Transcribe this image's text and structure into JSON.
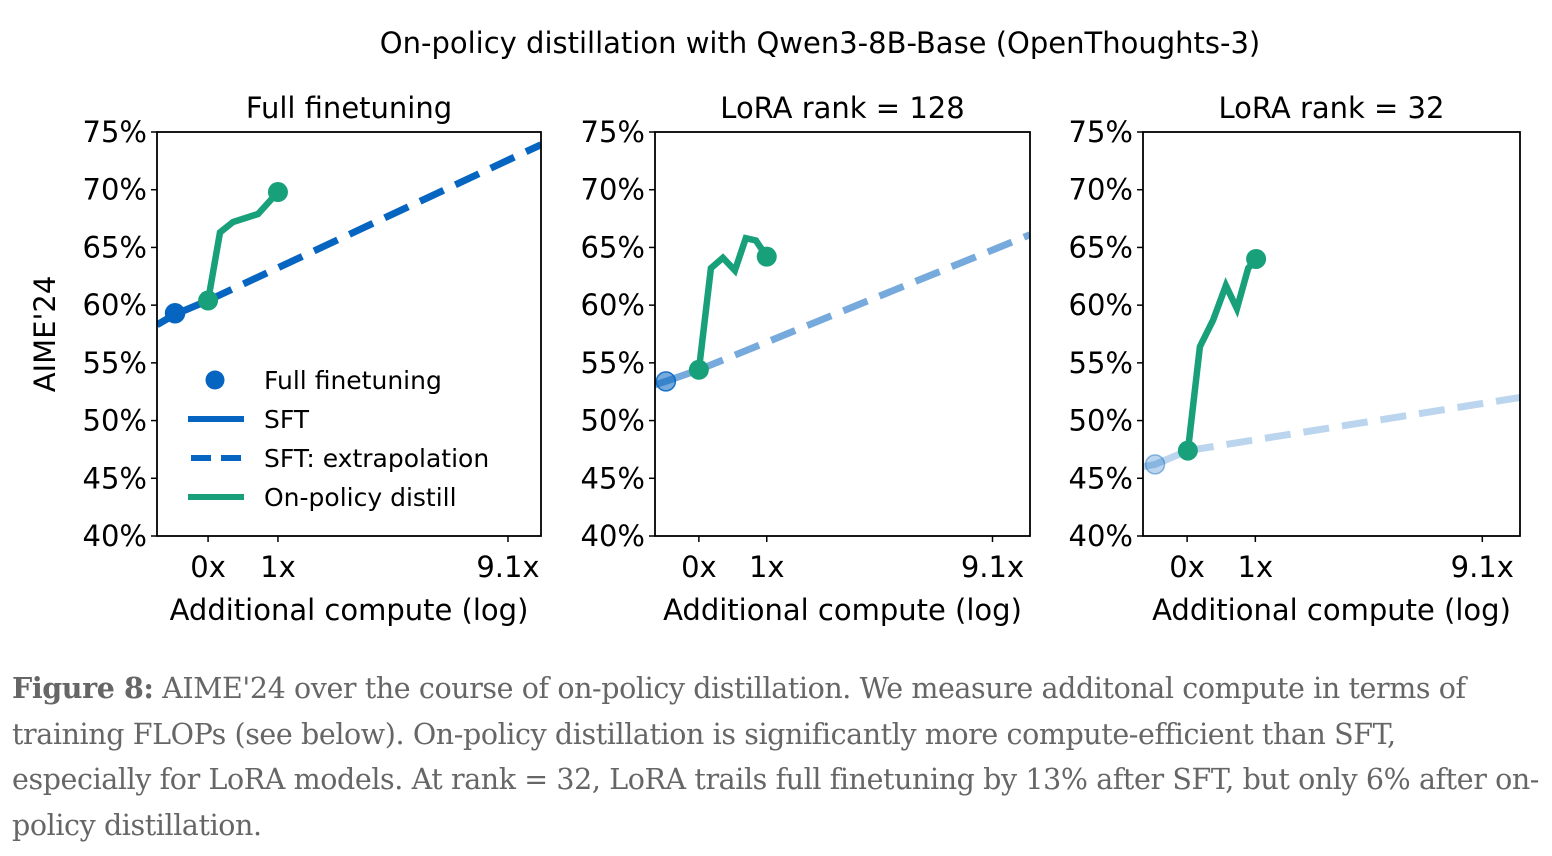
{
  "suptitle": "On-policy distillation with Qwen3-8B-Base (OpenThoughts-3)",
  "caption": {
    "label": "Figure 8:",
    "text": "AIME'24 over the course of on-policy distillation. We measure additonal compute in terms of training FLOPs (see below). On-policy distillation is significantly more compute-efficient than SFT, especially for LoRA models. At rank = 32, LoRA trails full finetuning by 13% after SFT, but only 6% after on-policy distillation."
  },
  "colors": {
    "sft": "#0565c0",
    "distill": "#18a07a",
    "axis": "#000000"
  },
  "chart_data": [
    {
      "type": "line",
      "title": "Full finetuning",
      "xlabel": "Additional compute (log)",
      "ylabel": "AIME'24",
      "xscale": "log (relative axis units)",
      "xlim": [
        0,
        1
      ],
      "x_ticks": [
        {
          "label": "0x",
          "pos": 0.133
        },
        {
          "label": "1x",
          "pos": 0.315
        },
        {
          "label": "9.1x",
          "pos": 0.914
        }
      ],
      "ylim": [
        40,
        75
      ],
      "y_ticks": [
        40,
        45,
        50,
        55,
        60,
        65,
        70,
        75
      ],
      "y_tick_labels": [
        "40%",
        "45%",
        "50%",
        "55%",
        "60%",
        "65%",
        "70%",
        "75%"
      ],
      "sft_opacity": 1.0,
      "legend": {
        "placement": "lower-left",
        "entries": [
          "Full finetuning",
          "SFT",
          "SFT: extrapolation",
          "On-policy distill"
        ]
      },
      "series": [
        {
          "name": "Full finetuning",
          "kind": "marker",
          "points": [
            [
              0.047,
              59.3
            ]
          ]
        },
        {
          "name": "SFT",
          "kind": "solid",
          "points": [
            [
              0.0,
              58.3
            ],
            [
              0.047,
              59.2
            ],
            [
              0.133,
              60.4
            ]
          ]
        },
        {
          "name": "SFT: extrapolation",
          "kind": "dashed",
          "points": [
            [
              0.133,
              60.4
            ],
            [
              1.0,
              73.9
            ]
          ]
        },
        {
          "name": "On-policy distill",
          "kind": "solid",
          "points": [
            [
              0.133,
              60.4
            ],
            [
              0.164,
              66.3
            ],
            [
              0.198,
              67.2
            ],
            [
              0.263,
              67.9
            ],
            [
              0.315,
              69.8
            ]
          ],
          "end_markers": true
        }
      ]
    },
    {
      "type": "line",
      "title": "LoRA rank = 128",
      "xlabel": "Additional compute (log)",
      "ylabel": "",
      "xlim": [
        0,
        1
      ],
      "x_ticks": [
        {
          "label": "0x",
          "pos": 0.117
        },
        {
          "label": "1x",
          "pos": 0.298
        },
        {
          "label": "9.1x",
          "pos": 0.9
        }
      ],
      "ylim": [
        40,
        75
      ],
      "y_ticks": [
        40,
        45,
        50,
        55,
        60,
        65,
        70,
        75
      ],
      "y_tick_labels": [
        "40%",
        "45%",
        "50%",
        "55%",
        "60%",
        "65%",
        "70%",
        "75%"
      ],
      "sft_opacity": 0.55,
      "series": [
        {
          "name": "Full finetuning",
          "kind": "marker",
          "points": [
            [
              0.029,
              53.4
            ]
          ]
        },
        {
          "name": "SFT",
          "kind": "solid",
          "points": [
            [
              0.0,
              53.1
            ],
            [
              0.029,
              53.4
            ],
            [
              0.117,
              54.4
            ]
          ]
        },
        {
          "name": "SFT: extrapolation",
          "kind": "dashed",
          "points": [
            [
              0.117,
              54.4
            ],
            [
              1.0,
              66.1
            ]
          ]
        },
        {
          "name": "On-policy distill",
          "kind": "solid",
          "points": [
            [
              0.117,
              54.4
            ],
            [
              0.149,
              63.2
            ],
            [
              0.181,
              64.1
            ],
            [
              0.213,
              63.0
            ],
            [
              0.242,
              65.8
            ],
            [
              0.269,
              65.6
            ],
            [
              0.298,
              64.2
            ]
          ],
          "end_markers": true
        }
      ]
    },
    {
      "type": "line",
      "title": "LoRA rank = 32",
      "xlabel": "Additional compute (log)",
      "ylabel": "",
      "xlim": [
        0,
        1
      ],
      "x_ticks": [
        {
          "label": "0x",
          "pos": 0.117
        },
        {
          "label": "1x",
          "pos": 0.298
        },
        {
          "label": "9.1x",
          "pos": 0.9
        }
      ],
      "ylim": [
        40,
        75
      ],
      "y_ticks": [
        40,
        45,
        50,
        55,
        60,
        65,
        70,
        75
      ],
      "y_tick_labels": [
        "40%",
        "45%",
        "50%",
        "55%",
        "60%",
        "65%",
        "70%",
        "75%"
      ],
      "sft_opacity": 0.27,
      "series": [
        {
          "name": "Full finetuning",
          "kind": "marker",
          "points": [
            [
              0.032,
              46.2
            ]
          ]
        },
        {
          "name": "SFT",
          "kind": "solid",
          "points": [
            [
              0.0,
              46.0
            ],
            [
              0.032,
              46.2
            ],
            [
              0.119,
              47.4
            ]
          ]
        },
        {
          "name": "SFT: extrapolation",
          "kind": "dashed",
          "points": [
            [
              0.119,
              47.4
            ],
            [
              1.0,
              52.0
            ]
          ]
        },
        {
          "name": "On-policy distill",
          "kind": "solid",
          "points": [
            [
              0.119,
              47.4
            ],
            [
              0.151,
              56.4
            ],
            [
              0.186,
              58.7
            ],
            [
              0.22,
              61.7
            ],
            [
              0.249,
              59.7
            ],
            [
              0.279,
              63.2
            ],
            [
              0.3,
              64.0
            ]
          ],
          "end_markers": true
        }
      ]
    }
  ]
}
